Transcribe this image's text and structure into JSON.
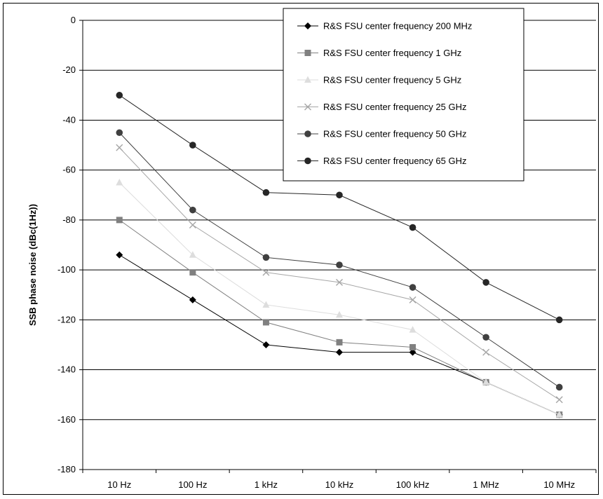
{
  "chart_data": {
    "type": "line",
    "categories": [
      "10 Hz",
      "100 Hz",
      "1 kHz",
      "10 kHz",
      "100 kHz",
      "1 MHz",
      "10 MHz"
    ],
    "ylabel": "SSB phase noise (dBc(1Hz))",
    "xlabel": "",
    "title": "",
    "ylim": [
      -180,
      0
    ],
    "yticks": [
      0,
      -20,
      -40,
      -60,
      -80,
      -100,
      -120,
      -140,
      -160,
      -180
    ],
    "grid": "horizontal",
    "legend_position": "top-right",
    "series": [
      {
        "name": "R&S FSU center frequency 200 MHz",
        "values": [
          -94,
          -112,
          -130,
          -133,
          -133,
          -145,
          -158
        ],
        "color": "#000000",
        "marker": "diamond"
      },
      {
        "name": "R&S FSU center frequency 1 GHz",
        "values": [
          -80,
          -101,
          -121,
          -129,
          -131,
          -145,
          -158
        ],
        "color": "#808080",
        "marker": "square"
      },
      {
        "name": "R&S FSU center frequency 5 GHz",
        "values": [
          -65,
          -94,
          -114,
          -118,
          -124,
          -145,
          -158
        ],
        "color": "#dddddd",
        "marker": "triangle"
      },
      {
        "name": "R&S FSU center frequency 25 GHz",
        "values": [
          -51,
          -82,
          -101,
          -105,
          -112,
          -133,
          -152
        ],
        "color": "#a6a6a6",
        "marker": "x"
      },
      {
        "name": "R&S FSU center frequency 50 GHz",
        "values": [
          -45,
          -76,
          -95,
          -98,
          -107,
          -127,
          -147
        ],
        "color": "#404040",
        "marker": "circle"
      },
      {
        "name": "R&S FSU center frequency 65 GHz",
        "values": [
          -30,
          -50,
          -69,
          -70,
          -83,
          -105,
          -120
        ],
        "color": "#262626",
        "marker": "circle"
      }
    ]
  }
}
